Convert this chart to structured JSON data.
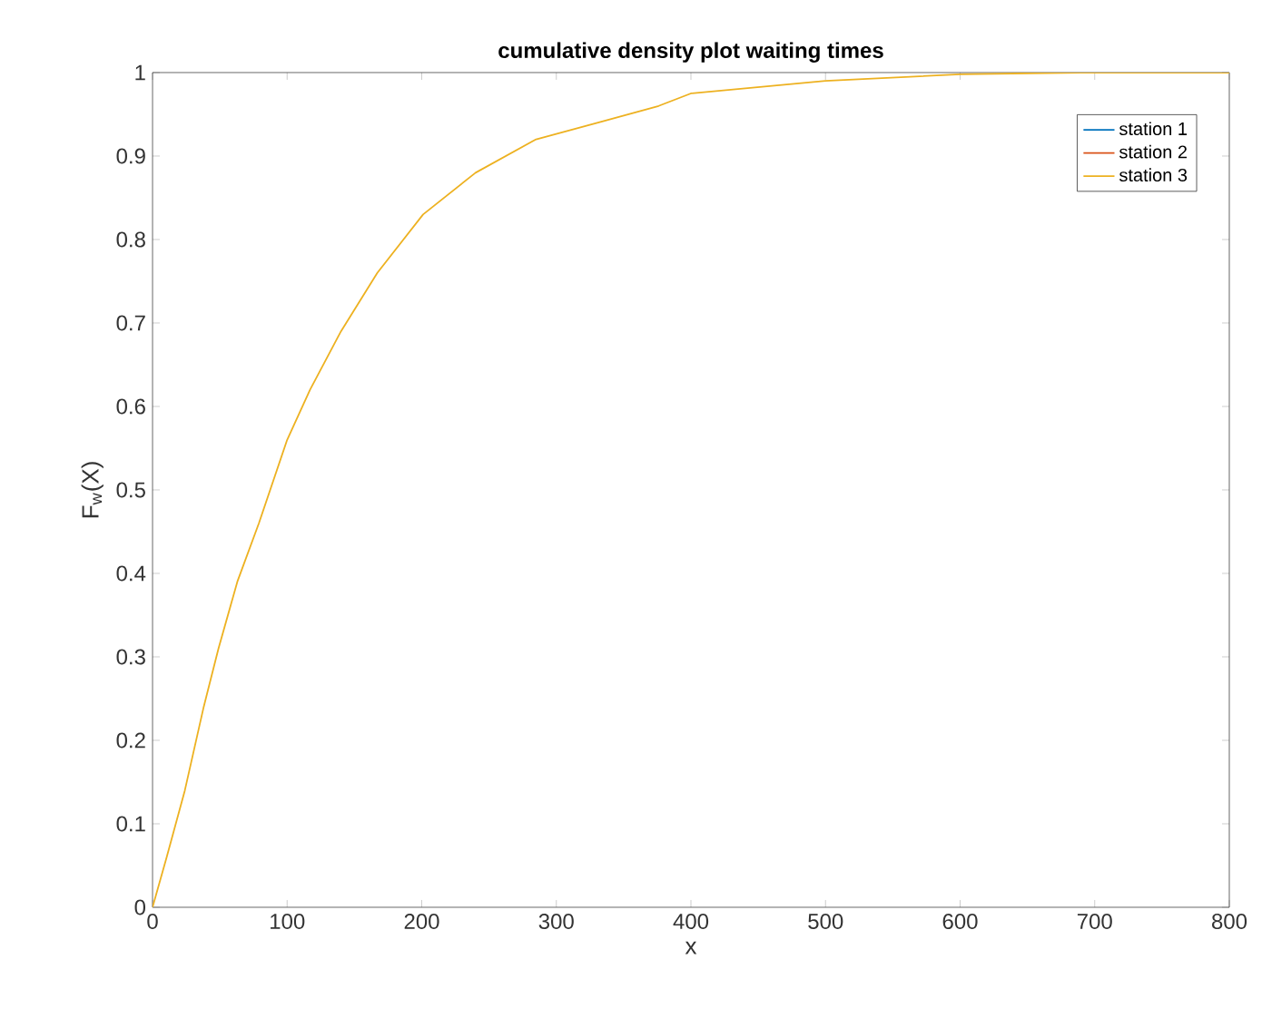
{
  "chart_data": {
    "type": "line",
    "title": "cumulative density plot waiting times",
    "xlabel": "x",
    "ylabel": "F$_{w}$(X)",
    "x": [
      0,
      10.5,
      24,
      38,
      49,
      63,
      79,
      100,
      117,
      140,
      167,
      201,
      240,
      285,
      331,
      376,
      400,
      500,
      600,
      690,
      800
    ],
    "series": [
      {
        "name": "station 1",
        "color": "#0072bd",
        "values": [
          null,
          null,
          null,
          null,
          null,
          null,
          null,
          null,
          null,
          null,
          null,
          null,
          null,
          null,
          null,
          null,
          null,
          null,
          null,
          null,
          null
        ]
      },
      {
        "name": "station 2",
        "color": "#d95319",
        "values": [
          null,
          null,
          null,
          null,
          null,
          null,
          null,
          null,
          null,
          null,
          null,
          null,
          null,
          null,
          null,
          null,
          null,
          null,
          null,
          null,
          null
        ]
      },
      {
        "name": "station 3",
        "color": "#edb120",
        "values": [
          0,
          0.06,
          0.14,
          0.24,
          0.31,
          0.39,
          0.46,
          0.56,
          0.62,
          0.69,
          0.76,
          0.83,
          0.88,
          0.92,
          0.94,
          0.96,
          0.975,
          0.99,
          0.998,
          1.0,
          1.0
        ]
      }
    ],
    "xlim": [
      0,
      800
    ],
    "xticks": [
      0,
      100,
      200,
      300,
      400,
      500,
      600,
      700,
      800
    ],
    "ylim": [
      0,
      1
    ],
    "yticks": [
      0,
      0.1,
      0.2,
      0.3,
      0.4,
      0.5,
      0.6,
      0.7,
      0.8,
      0.9,
      1
    ],
    "legend": "top right",
    "grid": false,
    "marker": "none",
    "line_style": "solid"
  }
}
